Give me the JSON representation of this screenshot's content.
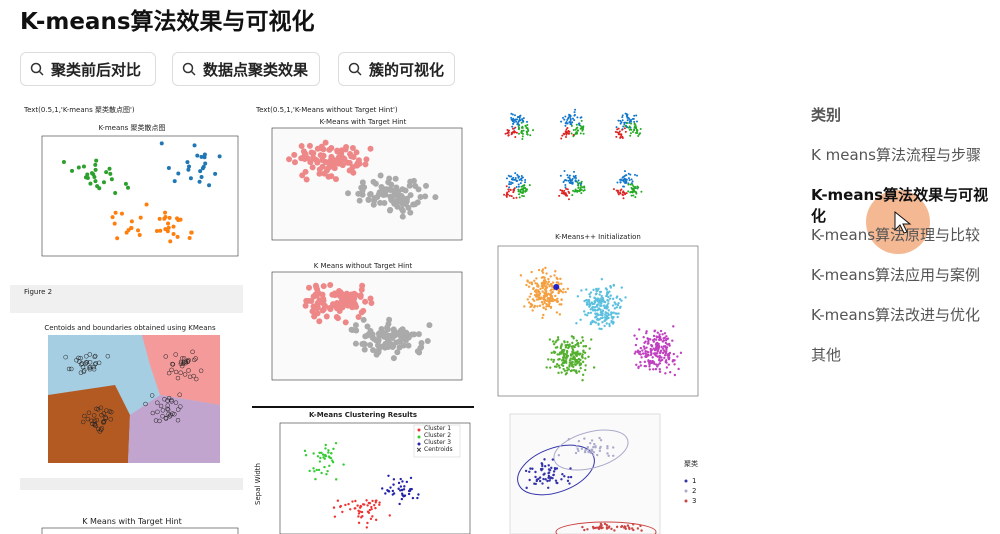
{
  "header": {
    "title": "K-means算法效果与可视化"
  },
  "search_chips": [
    "聚类前后对比",
    "数据点聚类效果",
    "簇的可视化"
  ],
  "sidebar": {
    "heading": "类别",
    "items": [
      "K means算法流程与步骤",
      "K-means算法效果与可视化",
      "K-means算法原理与比较",
      "K-means算法应用与案例",
      "K-means算法改进与优化",
      "其他"
    ]
  },
  "gallery": [
    {
      "caption": "Text(0.5,1,'K-means 聚类散点图')",
      "title": "K-means 聚类散点图"
    },
    {
      "caption": "Text(0.5,1,'K-Means without Target Hint')",
      "title": "K-Means with Target Hint"
    },
    {
      "title": "K Means without Target Hint"
    },
    {
      "caption": "Figure 2",
      "title": "Centoids and boundaries obtained using KMeans"
    },
    {
      "title": "K-Means Clustering Results",
      "y_label": "Sepal Width",
      "legend": [
        "Cluster 1",
        "Cluster 2",
        "Cluster 3",
        "Centroids"
      ]
    },
    {
      "title": "K-Means++ Initialization"
    },
    {
      "title": "K Means with Target Hint"
    },
    {
      "legend_title": "聚类",
      "legend": [
        "1",
        "2",
        "3"
      ]
    }
  ]
}
